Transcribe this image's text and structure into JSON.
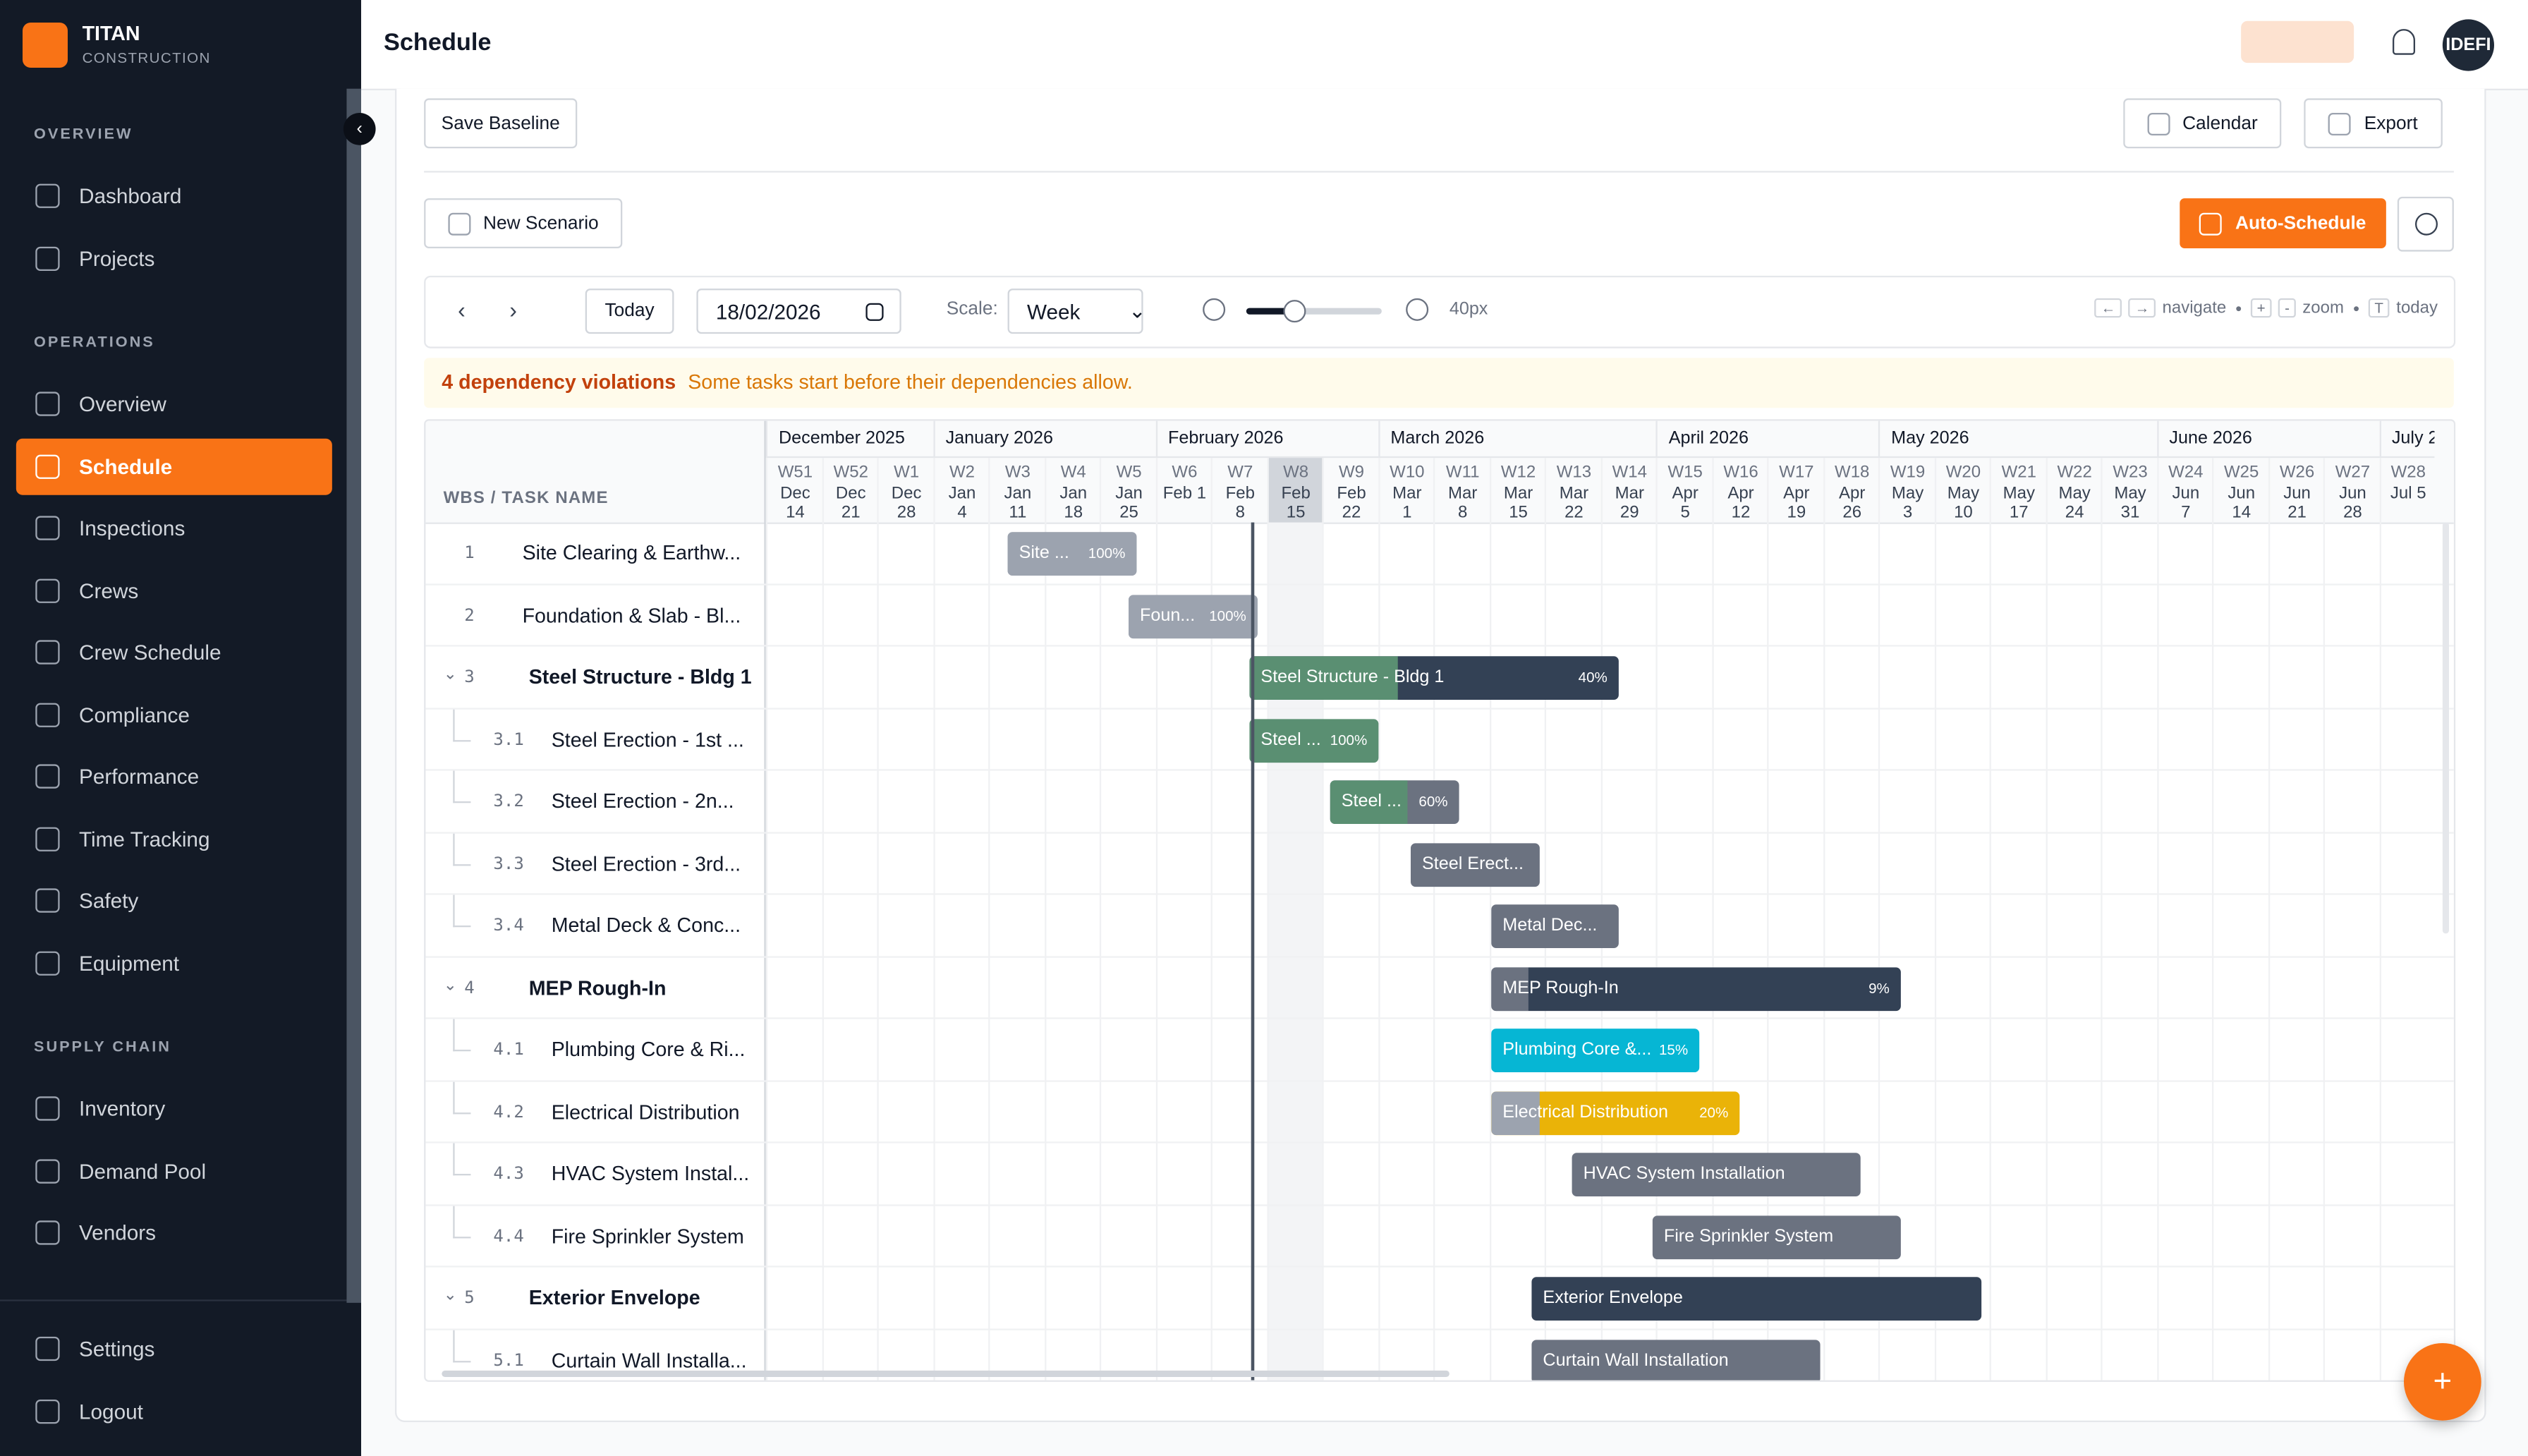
{
  "sidebar": {
    "brand": {
      "name": "TITAN",
      "sub": "CONSTRUCTION"
    },
    "sections": [
      {
        "title": "OVERVIEW",
        "items": [
          "Dashboard",
          "Projects"
        ]
      },
      {
        "title": "OPERATIONS",
        "items": [
          "Overview",
          "Schedule",
          "Inspections",
          "Crews",
          "Crew Schedule",
          "Compliance",
          "Performance",
          "Time Tracking",
          "Safety",
          "Equipment"
        ]
      },
      {
        "title": "SUPPLY CHAIN",
        "items": [
          "Inventory",
          "Demand Pool",
          "Vendors"
        ]
      }
    ],
    "footer": [
      "Settings",
      "Logout"
    ]
  },
  "header": {
    "title": "Schedule",
    "avatar": "IDEFI"
  },
  "toolbar": {
    "save_baseline": "Save Baseline",
    "calendar": "Calendar",
    "export": "Export",
    "new_scenario": "New Scenario",
    "auto_schedule": "Auto-Schedule",
    "today": "Today",
    "date": "18/02/2026",
    "scale_label": "Scale:",
    "scale": "Week",
    "zoom": "40px",
    "shortcuts": [
      {
        "keys": [
          "←",
          "→"
        ],
        "label": "navigate"
      },
      {
        "keys": [
          "+",
          "-"
        ],
        "label": "zoom"
      },
      {
        "keys": [
          "T"
        ],
        "label": "today"
      }
    ]
  },
  "alert": {
    "count": "4 dependency violations",
    "message": "Some tasks start before their dependencies allow."
  },
  "gantt": {
    "column": "WBS / TASK NAME",
    "months": [
      "December 2025",
      "January 2026",
      "February 2026",
      "March 2026",
      "April 2026",
      "May 2026",
      "June 2026",
      "July 2"
    ],
    "weeks": [
      {
        "w": "W51",
        "d": [
          "Dec",
          "14"
        ]
      },
      {
        "w": "W52",
        "d": [
          "Dec",
          "21"
        ]
      },
      {
        "w": "W1",
        "d": [
          "Dec",
          "28"
        ]
      },
      {
        "w": "W2",
        "d": [
          "Jan",
          "4"
        ]
      },
      {
        "w": "W3",
        "d": [
          "Jan",
          "11"
        ]
      },
      {
        "w": "W4",
        "d": [
          "Jan",
          "18"
        ]
      },
      {
        "w": "W5",
        "d": [
          "Jan",
          "25"
        ]
      },
      {
        "w": "W6",
        "d": [
          "Feb 1"
        ]
      },
      {
        "w": "W7",
        "d": [
          "Feb",
          "8"
        ]
      },
      {
        "w": "W8",
        "d": [
          "Feb",
          "15"
        ]
      },
      {
        "w": "W9",
        "d": [
          "Feb",
          "22"
        ]
      },
      {
        "w": "W10",
        "d": [
          "Mar",
          "1"
        ]
      },
      {
        "w": "W11",
        "d": [
          "Mar",
          "8"
        ]
      },
      {
        "w": "W12",
        "d": [
          "Mar",
          "15"
        ]
      },
      {
        "w": "W13",
        "d": [
          "Mar",
          "22"
        ]
      },
      {
        "w": "W14",
        "d": [
          "Mar",
          "29"
        ]
      },
      {
        "w": "W15",
        "d": [
          "Apr",
          "5"
        ]
      },
      {
        "w": "W16",
        "d": [
          "Apr",
          "12"
        ]
      },
      {
        "w": "W17",
        "d": [
          "Apr",
          "19"
        ]
      },
      {
        "w": "W18",
        "d": [
          "Apr",
          "26"
        ]
      },
      {
        "w": "W19",
        "d": [
          "May",
          "3"
        ]
      },
      {
        "w": "W20",
        "d": [
          "May",
          "10"
        ]
      },
      {
        "w": "W21",
        "d": [
          "May",
          "17"
        ]
      },
      {
        "w": "W22",
        "d": [
          "May",
          "24"
        ]
      },
      {
        "w": "W23",
        "d": [
          "May",
          "31"
        ]
      },
      {
        "w": "W24",
        "d": [
          "Jun",
          "7"
        ]
      },
      {
        "w": "W25",
        "d": [
          "Jun",
          "14"
        ]
      },
      {
        "w": "W26",
        "d": [
          "Jun",
          "21"
        ]
      },
      {
        "w": "W27",
        "d": [
          "Jun",
          "28"
        ]
      },
      {
        "w": "W28",
        "d": [
          "Jul 5"
        ]
      }
    ],
    "tasks": [
      {
        "wbs": "1",
        "name": "Site Clearing & Earthw...",
        "bar": "Site ...",
        "pct": "100%"
      },
      {
        "wbs": "2",
        "name": "Foundation & Slab - Bl...",
        "bar": "Foun...",
        "pct": "100%"
      },
      {
        "wbs": "3",
        "name": "Steel Structure - Bldg 1",
        "bar": "Steel Structure - Bldg 1",
        "pct": "40%"
      },
      {
        "wbs": "3.1",
        "name": "Steel Erection - 1st ...",
        "bar": "Steel ...",
        "pct": "100%"
      },
      {
        "wbs": "3.2",
        "name": "Steel Erection - 2n...",
        "bar": "Steel ...",
        "pct": "60%"
      },
      {
        "wbs": "3.3",
        "name": "Steel Erection - 3rd...",
        "bar": "Steel Erect..."
      },
      {
        "wbs": "3.4",
        "name": "Metal Deck & Conc...",
        "bar": "Metal Dec..."
      },
      {
        "wbs": "4",
        "name": "MEP Rough-In",
        "bar": "MEP Rough-In",
        "pct": "9%"
      },
      {
        "wbs": "4.1",
        "name": "Plumbing Core & Ri...",
        "bar": "Plumbing Core &...",
        "pct": "15%"
      },
      {
        "wbs": "4.2",
        "name": "Electrical Distribution",
        "bar": "Electrical Distribution",
        "pct": "20%"
      },
      {
        "wbs": "4.3",
        "name": "HVAC System Instal...",
        "bar": "HVAC System Installation"
      },
      {
        "wbs": "4.4",
        "name": "Fire Sprinkler System",
        "bar": "Fire Sprinkler System"
      },
      {
        "wbs": "5",
        "name": "Exterior Envelope",
        "bar": "Exterior Envelope"
      },
      {
        "wbs": "5.1",
        "name": "Curtain Wall Installa...",
        "bar": "Curtain Wall Installation"
      }
    ]
  },
  "fab": "+"
}
